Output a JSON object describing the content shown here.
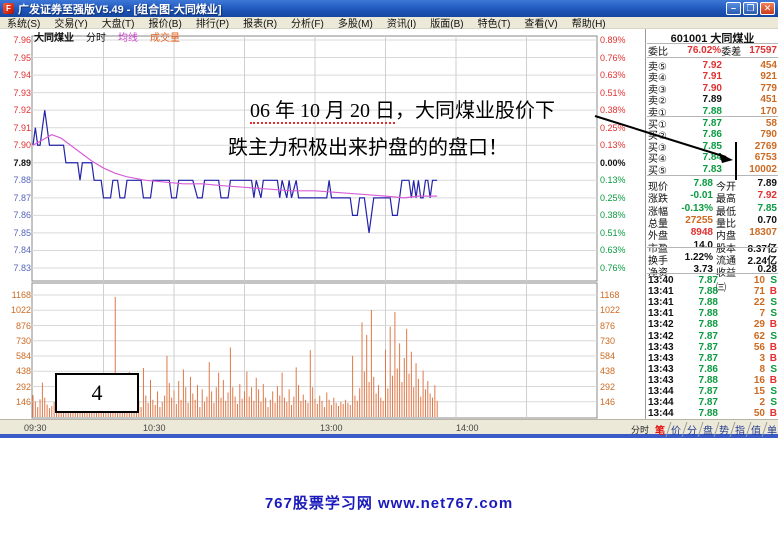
{
  "window": {
    "title": "广发证券至强版V5.49 - [组合图-大同煤业]",
    "buttons": {
      "minimize": "–",
      "restore": "❐",
      "close": "✕"
    }
  },
  "menu": {
    "items": [
      "系统(S)",
      "交易(Y)",
      "大盘(T)",
      "报价(B)",
      "排行(P)",
      "报表(R)",
      "分析(F)",
      "多股(M)",
      "资讯(I)",
      "版面(B)",
      "特色(T)",
      "查看(V)",
      "帮助(H)"
    ]
  },
  "legend": {
    "stock": "大同煤业",
    "mode": "分时",
    "avg": "均线",
    "vol": "成交量"
  },
  "annotation": {
    "date_part": "06 年 10 月 20 日",
    "line1_rest": "，大同煤业股价下",
    "line2": "跌主力积极出来护盘的的盘口！",
    "badge": "4"
  },
  "bottom": {
    "mode_label": "分时",
    "tabs": [
      "笔",
      "价",
      "分",
      "盘",
      "势",
      "指",
      "值",
      "单"
    ],
    "active_tab": "笔"
  },
  "watermark": "767股票学习网 www.net767.com",
  "panel": {
    "code": "601001",
    "name": "大同煤业",
    "weibi_label": "委比",
    "weibi": "76.02%",
    "weicha_label": "委差",
    "weicha": "17597",
    "asks": [
      {
        "label": "卖⑤",
        "price": "7.92",
        "vol": "454",
        "cls": "up"
      },
      {
        "label": "卖④",
        "price": "7.91",
        "vol": "921",
        "cls": "up"
      },
      {
        "label": "卖③",
        "price": "7.90",
        "vol": "779",
        "cls": "up"
      },
      {
        "label": "卖②",
        "price": "7.89",
        "vol": "451",
        "cls": "eq"
      },
      {
        "label": "卖①",
        "price": "7.88",
        "vol": "170",
        "cls": "dn"
      }
    ],
    "bids": [
      {
        "label": "买①",
        "price": "7.87",
        "vol": "58",
        "cls": "dn"
      },
      {
        "label": "买②",
        "price": "7.86",
        "vol": "790",
        "cls": "dn"
      },
      {
        "label": "买③",
        "price": "7.85",
        "vol": "2769",
        "cls": "dn"
      },
      {
        "label": "买④",
        "price": "7.84",
        "vol": "6753",
        "cls": "dn"
      },
      {
        "label": "买⑤",
        "price": "7.83",
        "vol": "10002",
        "cls": "dn"
      }
    ],
    "stats": [
      {
        "l1": "现价",
        "v1": "7.88",
        "c1": "dn",
        "l2": "今开",
        "v2": "7.89",
        "c2": "eq"
      },
      {
        "l1": "涨跌",
        "v1": "-0.01",
        "c1": "dn",
        "l2": "最高",
        "v2": "7.92",
        "c2": "up"
      },
      {
        "l1": "涨幅",
        "v1": "-0.13%",
        "c1": "dn",
        "l2": "最低",
        "v2": "7.85",
        "c2": "dn"
      },
      {
        "l1": "总量",
        "v1": "27255",
        "c1": "org",
        "l2": "量比",
        "v2": "0.70",
        "c2": "blk"
      },
      {
        "l1": "外盘",
        "v1": "8948",
        "c1": "up",
        "l2": "内盘",
        "v2": "18307",
        "c2": "org"
      },
      {
        "l1": "市盈",
        "v1": "14.0",
        "c1": "blk",
        "l2": "股本",
        "v2": "8.37亿",
        "c2": "blk"
      },
      {
        "l1": "换手",
        "v1": "1.22%",
        "c1": "blk",
        "l2": "流通",
        "v2": "2.24亿",
        "c2": "blk"
      },
      {
        "l1": "净资",
        "v1": "3.73",
        "c1": "blk",
        "l2": "收益㈢",
        "v2": "0.28",
        "c2": "blk"
      }
    ],
    "ticks": [
      {
        "time": "13:40",
        "price": "7.87",
        "qty": "10",
        "bs": "S"
      },
      {
        "time": "13:41",
        "price": "7.88",
        "qty": "71",
        "bs": "B"
      },
      {
        "time": "13:41",
        "price": "7.88",
        "qty": "22",
        "bs": "S"
      },
      {
        "time": "13:41",
        "price": "7.88",
        "qty": "7",
        "bs": "S"
      },
      {
        "time": "13:42",
        "price": "7.88",
        "qty": "29",
        "bs": "B"
      },
      {
        "time": "13:42",
        "price": "7.87",
        "qty": "62",
        "bs": "S"
      },
      {
        "time": "13:43",
        "price": "7.87",
        "qty": "56",
        "bs": "B"
      },
      {
        "time": "13:43",
        "price": "7.87",
        "qty": "3",
        "bs": "B"
      },
      {
        "time": "13:43",
        "price": "7.86",
        "qty": "8",
        "bs": "S"
      },
      {
        "time": "13:43",
        "price": "7.88",
        "qty": "16",
        "bs": "B"
      },
      {
        "time": "13:44",
        "price": "7.87",
        "qty": "15",
        "bs": "S"
      },
      {
        "time": "13:44",
        "price": "7.87",
        "qty": "2",
        "bs": "S"
      },
      {
        "time": "13:44",
        "price": "7.88",
        "qty": "50",
        "bs": "B"
      }
    ]
  },
  "colors": {
    "up": "#e03030",
    "down_green": "#0a9a40",
    "down_blue": "#5566bb",
    "flat": "#111111",
    "volume_text": "#cc6a22",
    "price_line": "#2222aa",
    "avg_line": "#d75fd7",
    "volume_bar": "#e07848",
    "titlebar_blue": "#1d54b8",
    "watermark_blue": "#1a1abc"
  },
  "chart_data": {
    "type": "line",
    "title": "大同煤业 分时走势 (intraday price + average + volume)",
    "prev_close": 7.89,
    "price_axis_labels": [
      "7.96",
      "7.95",
      "7.94",
      "7.93",
      "7.92",
      "7.91",
      "7.90",
      "7.89",
      "7.88",
      "7.87",
      "7.86",
      "7.85",
      "7.84",
      "7.83"
    ],
    "percent_axis_labels": [
      "0.89%",
      "0.76%",
      "0.63%",
      "0.51%",
      "0.38%",
      "0.25%",
      "0.13%",
      "0.00%",
      "0.13%",
      "0.25%",
      "0.38%",
      "0.51%",
      "0.63%",
      "0.76%"
    ],
    "volume_axis_labels": [
      "1168",
      "1022",
      "876",
      "730",
      "584",
      "438",
      "292",
      "146"
    ],
    "x_tick_labels": [
      "09:30",
      "10:30",
      "13:00",
      "14:00"
    ],
    "x_range_minutes": [
      0,
      240
    ],
    "price_ylim": [
      7.825,
      7.965
    ],
    "volume_ylim": [
      0,
      1192
    ],
    "series": [
      {
        "name": "price",
        "points": [
          [
            0,
            7.9
          ],
          [
            1,
            7.91
          ],
          [
            2,
            7.9
          ],
          [
            3,
            7.9
          ],
          [
            4,
            7.91
          ],
          [
            5,
            7.92
          ],
          [
            6,
            7.91
          ],
          [
            7,
            7.9
          ],
          [
            13,
            7.9
          ],
          [
            14,
            7.89
          ],
          [
            19,
            7.89
          ],
          [
            20,
            7.88
          ],
          [
            21,
            7.89
          ],
          [
            25,
            7.89
          ],
          [
            26,
            7.88
          ],
          [
            29,
            7.88
          ],
          [
            30,
            7.87
          ],
          [
            33,
            7.87
          ],
          [
            34,
            7.88
          ],
          [
            36,
            7.88
          ],
          [
            37,
            7.87
          ],
          [
            39,
            7.87
          ],
          [
            40,
            7.88
          ],
          [
            46,
            7.88
          ],
          [
            47,
            7.87
          ],
          [
            50,
            7.87
          ],
          [
            51,
            7.88
          ],
          [
            58,
            7.88
          ],
          [
            59,
            7.87
          ],
          [
            61,
            7.87
          ],
          [
            62,
            7.88
          ],
          [
            68,
            7.88
          ],
          [
            70,
            7.87
          ],
          [
            72,
            7.87
          ],
          [
            73,
            7.88
          ],
          [
            79,
            7.88
          ],
          [
            80,
            7.87
          ],
          [
            83,
            7.87
          ],
          [
            84,
            7.88
          ],
          [
            93,
            7.88
          ],
          [
            94,
            7.87
          ],
          [
            95,
            7.88
          ],
          [
            97,
            7.87
          ],
          [
            98,
            7.88
          ],
          [
            104,
            7.88
          ],
          [
            105,
            7.87
          ],
          [
            106,
            7.88
          ],
          [
            108,
            7.87
          ],
          [
            109,
            7.88
          ],
          [
            110,
            7.87
          ],
          [
            112,
            7.88
          ],
          [
            113,
            7.87
          ],
          [
            120,
            7.87
          ],
          [
            125,
            7.87
          ],
          [
            126,
            7.88
          ],
          [
            127,
            7.87
          ],
          [
            135,
            7.87
          ],
          [
            136,
            7.86
          ],
          [
            138,
            7.86
          ],
          [
            139,
            7.87
          ],
          [
            141,
            7.87
          ],
          [
            142,
            7.86
          ],
          [
            143,
            7.85
          ],
          [
            144,
            7.86
          ],
          [
            145,
            7.87
          ],
          [
            152,
            7.87
          ],
          [
            153,
            7.86
          ],
          [
            155,
            7.86
          ],
          [
            156,
            7.87
          ],
          [
            157,
            7.88
          ],
          [
            160,
            7.88
          ],
          [
            161,
            7.87
          ],
          [
            162,
            7.88
          ],
          [
            163,
            7.87
          ],
          [
            164,
            7.88
          ],
          [
            165,
            7.87
          ],
          [
            166,
            7.87
          ],
          [
            167,
            7.88
          ],
          [
            168,
            7.88
          ],
          [
            169,
            7.87
          ],
          [
            170,
            7.88
          ],
          [
            172,
            7.88
          ]
        ]
      },
      {
        "name": "average",
        "points": [
          [
            0,
            7.9
          ],
          [
            4,
            7.903
          ],
          [
            8,
            7.906
          ],
          [
            12,
            7.904
          ],
          [
            16,
            7.9
          ],
          [
            20,
            7.896
          ],
          [
            25,
            7.891
          ],
          [
            30,
            7.887
          ],
          [
            35,
            7.884
          ],
          [
            40,
            7.882
          ],
          [
            48,
            7.88
          ],
          [
            56,
            7.879
          ],
          [
            64,
            7.878
          ],
          [
            72,
            7.878
          ],
          [
            80,
            7.877
          ],
          [
            90,
            7.876
          ],
          [
            100,
            7.875
          ],
          [
            110,
            7.874
          ],
          [
            120,
            7.874
          ],
          [
            130,
            7.873
          ],
          [
            140,
            7.872
          ],
          [
            150,
            7.871
          ],
          [
            158,
            7.87
          ],
          [
            164,
            7.871
          ],
          [
            172,
            7.871
          ]
        ]
      }
    ],
    "volume_per_minute": [
      210,
      150,
      95,
      170,
      330,
      185,
      120,
      85,
      105,
      145,
      75,
      95,
      135,
      65,
      115,
      155,
      85,
      100,
      125,
      75,
      90,
      65,
      145,
      105,
      80,
      95,
      185,
      125,
      70,
      85,
      245,
      165,
      115,
      180,
      265,
      1150,
      390,
      170,
      230,
      320,
      145,
      430,
      185,
      125,
      270,
      155,
      95,
      470,
      205,
      135,
      355,
      165,
      115,
      245,
      95,
      145,
      205,
      585,
      325,
      185,
      255,
      125,
      345,
      165,
      455,
      285,
      135,
      385,
      225,
      165,
      305,
      95,
      265,
      145,
      195,
      525,
      245,
      135,
      285,
      425,
      185,
      355,
      155,
      235,
      665,
      285,
      195,
      125,
      315,
      175,
      245,
      435,
      195,
      285,
      155,
      375,
      265,
      145,
      315,
      185,
      95,
      165,
      245,
      135,
      295,
      205,
      425,
      185,
      145,
      265,
      115,
      195,
      475,
      305,
      155,
      215,
      165,
      135,
      640,
      285,
      175,
      125,
      205,
      155,
      95,
      235,
      165,
      115,
      185,
      135,
      105,
      145,
      125,
      165,
      135,
      115,
      585,
      205,
      155,
      275,
      905,
      435,
      785,
      335,
      1025,
      385,
      225,
      305,
      185,
      155,
      645,
      275,
      865,
      395,
      1005,
      465,
      705,
      335,
      565,
      845,
      415,
      625,
      285,
      515,
      365,
      195,
      445,
      265,
      345,
      225,
      185,
      305,
      155
    ]
  }
}
